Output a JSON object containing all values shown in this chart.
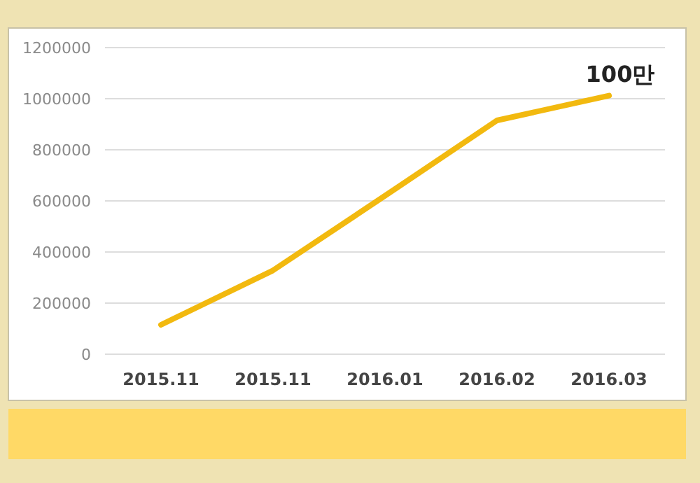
{
  "chart_data": {
    "type": "line",
    "categories": [
      "2015.11",
      "2015.11",
      "2016.01",
      "2016.02",
      "2016.03"
    ],
    "series": [
      {
        "color": "#f2b90f",
        "values": [
          115000,
          328000,
          620000,
          915000,
          1012000
        ]
      }
    ],
    "ylim": [
      0,
      1200000
    ],
    "yticks": [
      0,
      200000,
      400000,
      600000,
      800000,
      1000000,
      1200000
    ],
    "grid": "y",
    "marker": "none",
    "line_style": "solid",
    "annotations": [
      {
        "text": "100만",
        "x": "2016.03",
        "y": 1012000
      }
    ]
  }
}
